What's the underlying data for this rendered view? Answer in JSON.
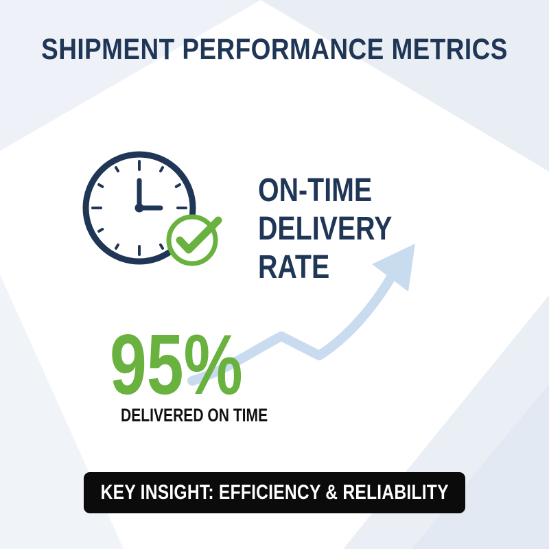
{
  "header": {
    "title": "SHIPMENT PERFORMANCE METRICS"
  },
  "metric": {
    "title_lines": [
      "ON-TIME",
      "DELIVERY",
      "RATE"
    ],
    "value": "95%",
    "caption": "DELIVERED ON TIME",
    "icon": "clock-with-checkmark-icon",
    "trend_icon": "upward-trend-arrow-icon"
  },
  "insight": {
    "text": "KEY INSIGHT: EFFICIENCY & RELIABILITY"
  },
  "colors": {
    "navy": "#1f3656",
    "green": "#69b23f",
    "arrow": "#c9dcef",
    "banner": "#0b0b0b"
  }
}
